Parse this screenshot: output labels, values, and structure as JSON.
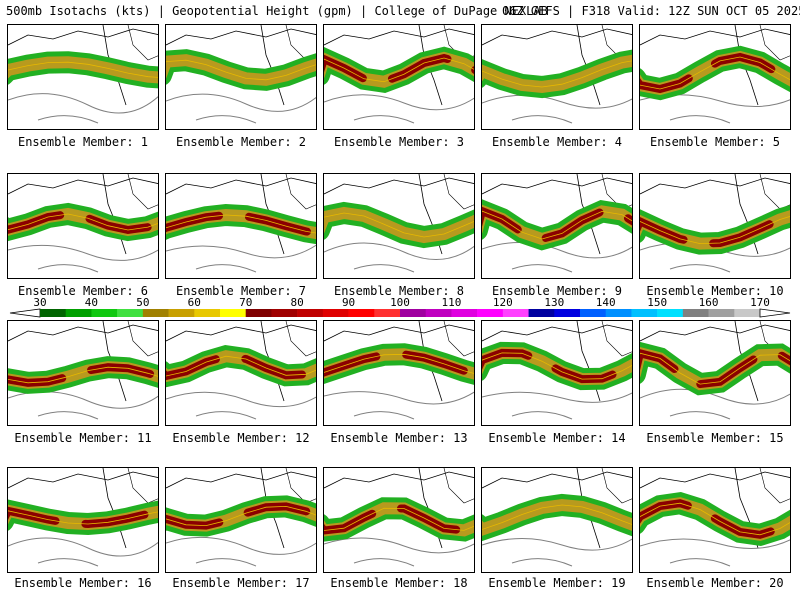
{
  "header": {
    "title_left": "500mb Isotachs (kts) | Geopotential Height (gpm) | College of DuPage NEXLAB",
    "title_right": "06Z GEFS | F318 Valid: 12Z SUN OCT 05 2025"
  },
  "members": [
    {
      "label": "Ensemble Member: 1",
      "jet": "moderate"
    },
    {
      "label": "Ensemble Member: 2",
      "jet": "moderate"
    },
    {
      "label": "Ensemble Member: 3",
      "jet": "strong"
    },
    {
      "label": "Ensemble Member: 4",
      "jet": "moderate"
    },
    {
      "label": "Ensemble Member: 5",
      "jet": "strong"
    },
    {
      "label": "Ensemble Member: 6",
      "jet": "strong"
    },
    {
      "label": "Ensemble Member: 7",
      "jet": "strong"
    },
    {
      "label": "Ensemble Member: 8",
      "jet": "moderate"
    },
    {
      "label": "Ensemble Member: 9",
      "jet": "strong"
    },
    {
      "label": "Ensemble Member: 10",
      "jet": "strong"
    },
    {
      "label": "Ensemble Member: 11",
      "jet": "strong"
    },
    {
      "label": "Ensemble Member: 12",
      "jet": "strong"
    },
    {
      "label": "Ensemble Member: 13",
      "jet": "strong"
    },
    {
      "label": "Ensemble Member: 14",
      "jet": "strong"
    },
    {
      "label": "Ensemble Member: 15",
      "jet": "strong"
    },
    {
      "label": "Ensemble Member: 16",
      "jet": "strong"
    },
    {
      "label": "Ensemble Member: 17",
      "jet": "strong"
    },
    {
      "label": "Ensemble Member: 18",
      "jet": "strong"
    },
    {
      "label": "Ensemble Member: 19",
      "jet": "moderate"
    },
    {
      "label": "Ensemble Member: 20",
      "jet": "strong"
    }
  ],
  "colorbar": {
    "labels": [
      "30",
      "40",
      "50",
      "60",
      "70",
      "80",
      "90",
      "100",
      "110",
      "120",
      "130",
      "140",
      "150",
      "160",
      "170"
    ],
    "colors": [
      "#006400",
      "#00a000",
      "#10c810",
      "#40e040",
      "#a08000",
      "#c8a000",
      "#e8c800",
      "#ffff00",
      "#800000",
      "#a00000",
      "#c00000",
      "#e00000",
      "#ff0000",
      "#ff3030",
      "#a000a0",
      "#c000c0",
      "#e000e0",
      "#ff00ff",
      "#ff40ff",
      "#0000a0",
      "#0000e0",
      "#0060ff",
      "#0090ff",
      "#00c0ff",
      "#00e0ff",
      "#808080",
      "#a0a0a0",
      "#c8c8c8"
    ]
  },
  "jet_colors": {
    "outer": "#22b022",
    "mid": "#b89a1e",
    "core": "#8b0000",
    "inner": "#e8b800"
  }
}
